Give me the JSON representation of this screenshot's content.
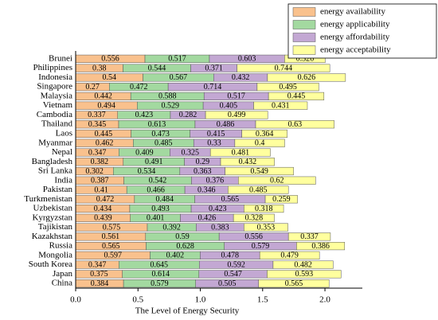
{
  "chart_data": {
    "type": "stacked-barh",
    "xlabel": "The Level of Energy Security",
    "categories": [
      "Brunei",
      "Philippines",
      "Indonesia",
      "Singapore",
      "Malaysia",
      "Vietnam",
      "Cambodia",
      "Thailand",
      "Laos",
      "Myanmar",
      "Nepal",
      "Bangladesh",
      "Sri Lanka",
      "India",
      "Pakistan",
      "Turkmenistan",
      "Uzbekistan",
      "Kyrgyzstan",
      "Tajikistan",
      "Kazakhstan",
      "Russia",
      "Mongolia",
      "South Korea",
      "Japan",
      "China"
    ],
    "series": [
      {
        "name": "energy availability",
        "color": "#f9c18d",
        "values": [
          0.556,
          0.38,
          0.54,
          0.27,
          0.442,
          0.494,
          0.337,
          0.345,
          0.445,
          0.462,
          0.347,
          0.382,
          0.302,
          0.387,
          0.41,
          0.472,
          0.434,
          0.439,
          0.575,
          0.561,
          0.565,
          0.597,
          0.347,
          0.375,
          0.384
        ]
      },
      {
        "name": "energy applicability",
        "color": "#a3d9a0",
        "values": [
          0.517,
          0.544,
          0.567,
          0.472,
          0.588,
          0.529,
          0.423,
          0.613,
          0.473,
          0.485,
          0.409,
          0.491,
          0.534,
          0.542,
          0.466,
          0.484,
          0.493,
          0.401,
          0.392,
          0.59,
          0.628,
          0.402,
          0.645,
          0.614,
          0.579
        ]
      },
      {
        "name": "energy affordability",
        "color": "#c3a8d3",
        "values": [
          0.603,
          0.371,
          0.432,
          0.714,
          0.517,
          0.405,
          0.282,
          0.486,
          0.415,
          0.33,
          0.325,
          0.29,
          0.363,
          0.376,
          0.346,
          0.565,
          0.423,
          0.426,
          0.383,
          0.556,
          0.579,
          0.478,
          0.592,
          0.547,
          0.505
        ]
      },
      {
        "name": "energy acceptability",
        "color": "#ffff9e",
        "values": [
          0.326,
          0.744,
          0.626,
          0.495,
          0.445,
          0.431,
          0.499,
          0.63,
          0.364,
          0.4,
          0.481,
          0.432,
          0.549,
          0.62,
          0.485,
          0.259,
          0.318,
          0.328,
          0.353,
          0.337,
          0.386,
          0.479,
          0.482,
          0.593,
          0.565
        ]
      }
    ],
    "xlim": [
      0,
      2.3
    ],
    "xticks": [
      {
        "value": 0,
        "label": "0.0"
      },
      0.5,
      {
        "value": 1,
        "label": "1.0"
      },
      1.5,
      {
        "value": 2,
        "label": "2.0"
      }
    ],
    "legend": "upper right"
  }
}
